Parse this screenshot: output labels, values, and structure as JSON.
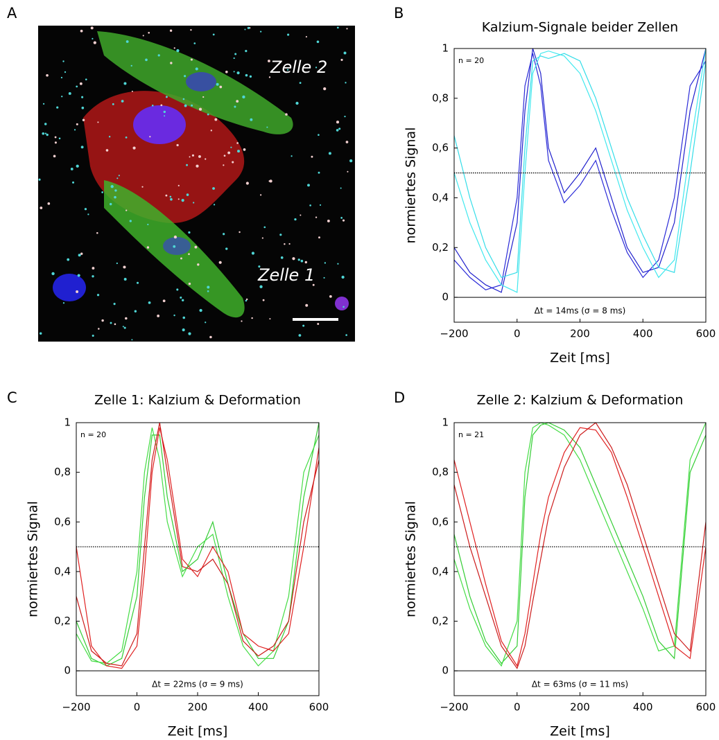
{
  "panel_a": {
    "letter": "A",
    "labels": [
      "Zelle 2",
      "Zelle 1"
    ]
  },
  "chart_data": [
    {
      "type": "line",
      "letter": "B",
      "title": "Kalzium-Signale beider Zellen",
      "xlabel": "Zeit [ms]",
      "ylabel": "normiertes Signal",
      "annotations": [
        "n = 20",
        "Δt = 14ms (σ = 8 ms)"
      ],
      "x": [
        -200,
        -150,
        -100,
        -50,
        0,
        25,
        50,
        75,
        100,
        150,
        200,
        250,
        300,
        350,
        400,
        450,
        500,
        550,
        600
      ],
      "series": [
        {
          "color": "#1f1fcc",
          "values": [
            0.2,
            0.1,
            0.05,
            0.02,
            0.3,
            0.75,
            1,
            0.9,
            0.6,
            0.42,
            0.5,
            0.6,
            0.4,
            0.2,
            0.1,
            0.12,
            0.3,
            0.75,
            1
          ]
        },
        {
          "color": "#2a2ad8",
          "values": [
            0.15,
            0.08,
            0.03,
            0.05,
            0.4,
            0.85,
            0.98,
            0.85,
            0.55,
            0.38,
            0.45,
            0.55,
            0.35,
            0.18,
            0.08,
            0.15,
            0.4,
            0.85,
            0.95
          ]
        },
        {
          "color": "#33dde8",
          "values": [
            0.65,
            0.4,
            0.2,
            0.08,
            0.1,
            0.6,
            0.95,
            0.97,
            0.96,
            0.98,
            0.95,
            0.8,
            0.6,
            0.4,
            0.25,
            0.12,
            0.1,
            0.5,
            0.95
          ]
        },
        {
          "color": "#40e8ee",
          "values": [
            0.5,
            0.3,
            0.15,
            0.05,
            0.02,
            0.5,
            0.9,
            0.98,
            0.99,
            0.97,
            0.9,
            0.75,
            0.55,
            0.35,
            0.2,
            0.08,
            0.15,
            0.6,
            1
          ]
        }
      ],
      "reference_lines": [
        {
          "value": 0,
          "style": "solid"
        },
        {
          "value": 0.5,
          "style": "dotted"
        }
      ],
      "xlim": [
        -200,
        600
      ],
      "ylim": [
        -0.1,
        1
      ],
      "xticks": [
        {
          "value": -200,
          "label": "−200"
        },
        0,
        200,
        400,
        600
      ],
      "yticks": [
        0,
        {
          "value": 0.2,
          "label": "0,2"
        },
        {
          "value": 0.4,
          "label": "0,4"
        },
        {
          "value": 0.6,
          "label": "0,6"
        },
        {
          "value": 0.8,
          "label": "0,8"
        },
        1
      ]
    },
    {
      "type": "line",
      "letter": "C",
      "title": "Zelle 1: Kalzium & Deformation",
      "xlabel": "Zeit [ms]",
      "ylabel": "normiertes Signal",
      "annotations": [
        "n = 20",
        "Δt = 22ms (σ = 9 ms)"
      ],
      "x": [
        -200,
        -150,
        -100,
        -50,
        0,
        25,
        50,
        75,
        100,
        150,
        200,
        250,
        300,
        350,
        400,
        450,
        500,
        550,
        600
      ],
      "series": [
        {
          "color": "#33cc33",
          "values": [
            0.2,
            0.05,
            0.02,
            0.05,
            0.3,
            0.7,
            0.95,
            0.95,
            0.7,
            0.4,
            0.45,
            0.6,
            0.35,
            0.15,
            0.05,
            0.05,
            0.2,
            0.7,
            1
          ]
        },
        {
          "color": "#44dd44",
          "values": [
            0.15,
            0.04,
            0.03,
            0.08,
            0.4,
            0.8,
            0.98,
            0.85,
            0.6,
            0.38,
            0.5,
            0.55,
            0.3,
            0.1,
            0.02,
            0.08,
            0.3,
            0.8,
            0.95
          ]
        },
        {
          "color": "#e02020",
          "values": [
            0.5,
            0.1,
            0.02,
            0.01,
            0.1,
            0.4,
            0.8,
            0.98,
            0.85,
            0.45,
            0.38,
            0.5,
            0.4,
            0.15,
            0.1,
            0.08,
            0.15,
            0.5,
            0.9
          ]
        },
        {
          "color": "#cc1a1a",
          "values": [
            0.3,
            0.08,
            0.03,
            0.02,
            0.15,
            0.5,
            0.85,
            1,
            0.8,
            0.42,
            0.4,
            0.45,
            0.35,
            0.12,
            0.06,
            0.1,
            0.2,
            0.6,
            0.85
          ]
        }
      ],
      "reference_lines": [
        {
          "value": 0,
          "style": "solid"
        },
        {
          "value": 0.5,
          "style": "dotted"
        }
      ],
      "xlim": [
        -200,
        600
      ],
      "ylim": [
        -0.1,
        1
      ],
      "xticks": [
        {
          "value": -200,
          "label": "−200"
        },
        0,
        200,
        400,
        600
      ],
      "yticks": [
        0,
        {
          "value": 0.2,
          "label": "0,2"
        },
        {
          "value": 0.4,
          "label": "0,4"
        },
        {
          "value": 0.6,
          "label": "0,6"
        },
        {
          "value": 0.8,
          "label": "0,8"
        },
        1
      ]
    },
    {
      "type": "line",
      "letter": "D",
      "title": "Zelle 2: Kalzium & Deformation",
      "xlabel": "Zeit [ms]",
      "ylabel": "normiertes Signal",
      "annotations": [
        "n = 21",
        "Δt = 63ms (σ = 11 ms)"
      ],
      "x": [
        -200,
        -150,
        -100,
        -50,
        0,
        25,
        50,
        75,
        100,
        150,
        200,
        250,
        300,
        350,
        400,
        450,
        500,
        550,
        600
      ],
      "series": [
        {
          "color": "#33cc33",
          "values": [
            0.55,
            0.3,
            0.12,
            0.03,
            0.1,
            0.7,
            0.95,
            0.99,
            1,
            0.97,
            0.9,
            0.75,
            0.6,
            0.45,
            0.3,
            0.12,
            0.05,
            0.8,
            0.95
          ]
        },
        {
          "color": "#44dd44",
          "values": [
            0.45,
            0.25,
            0.1,
            0.02,
            0.2,
            0.8,
            0.98,
            1,
            0.99,
            0.95,
            0.85,
            0.7,
            0.55,
            0.4,
            0.25,
            0.08,
            0.1,
            0.85,
            1
          ]
        },
        {
          "color": "#e02020",
          "values": [
            0.85,
            0.6,
            0.35,
            0.12,
            0.02,
            0.15,
            0.35,
            0.55,
            0.7,
            0.88,
            0.98,
            0.97,
            0.88,
            0.7,
            0.5,
            0.3,
            0.1,
            0.05,
            0.5
          ]
        },
        {
          "color": "#cc1a1a",
          "values": [
            0.75,
            0.5,
            0.3,
            0.1,
            0.01,
            0.1,
            0.28,
            0.45,
            0.62,
            0.82,
            0.95,
            1,
            0.9,
            0.75,
            0.55,
            0.35,
            0.15,
            0.08,
            0.6
          ]
        }
      ],
      "reference_lines": [
        {
          "value": 0,
          "style": "solid"
        },
        {
          "value": 0.5,
          "style": "dotted"
        }
      ],
      "xlim": [
        -200,
        600
      ],
      "ylim": [
        -0.1,
        1
      ],
      "xticks": [
        {
          "value": -200,
          "label": "−200"
        },
        0,
        200,
        400,
        600
      ],
      "yticks": [
        0,
        {
          "value": 0.2,
          "label": "0,2"
        },
        {
          "value": 0.4,
          "label": "0,4"
        },
        {
          "value": 0.6,
          "label": "0,6"
        },
        {
          "value": 0.8,
          "label": "0,8"
        },
        1
      ]
    }
  ]
}
